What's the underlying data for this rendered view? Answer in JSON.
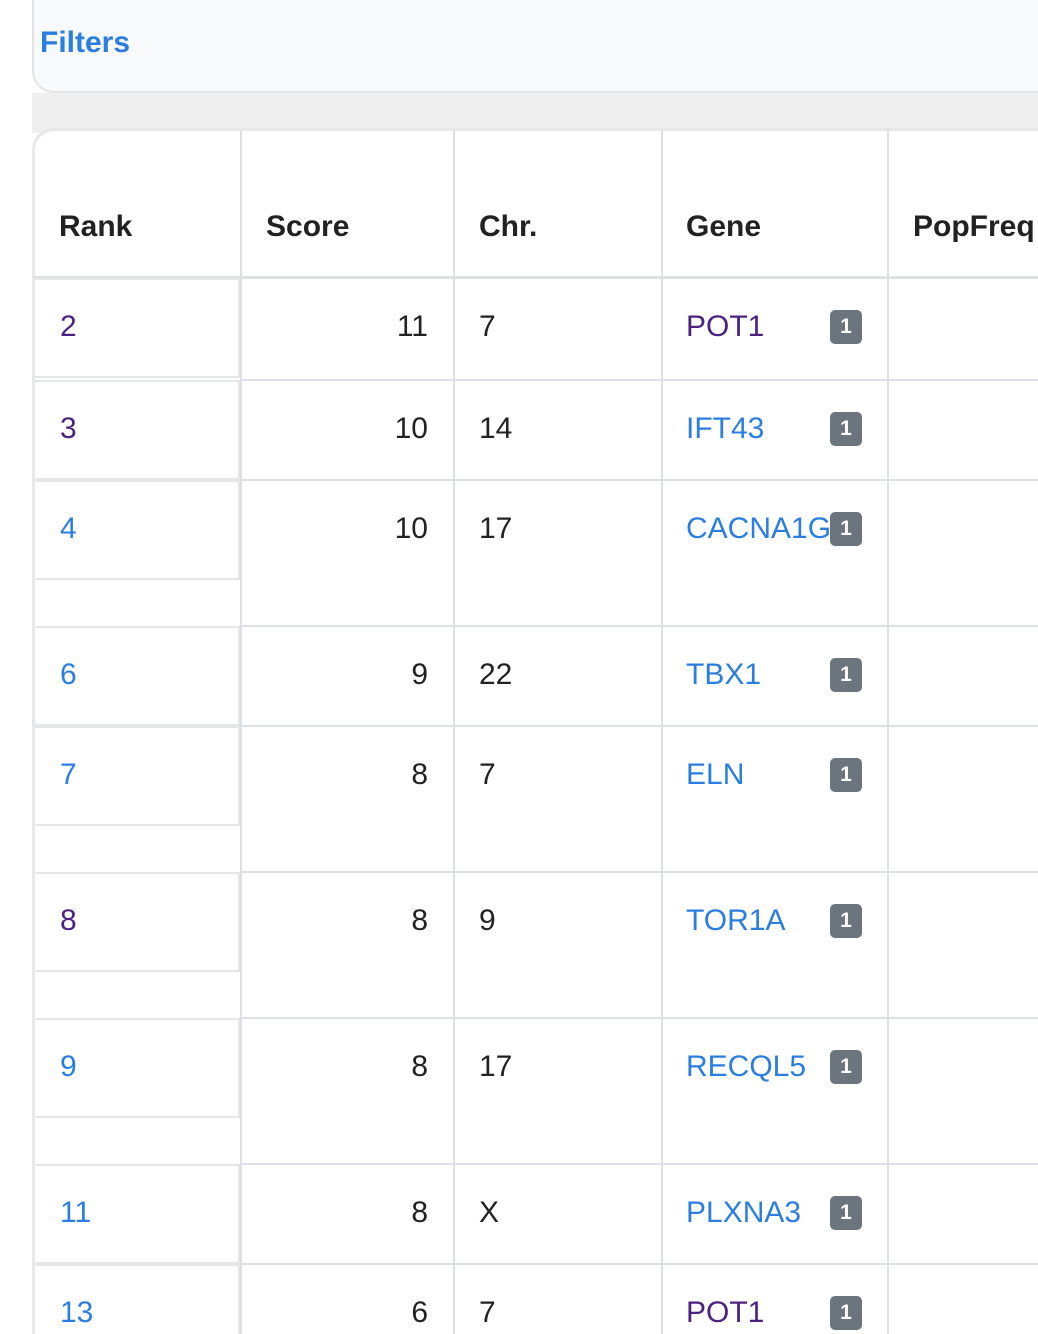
{
  "filters": {
    "title": "Filters"
  },
  "table": {
    "headers": [
      "Rank",
      "Score",
      "Chr.",
      "Gene",
      "PopFreq"
    ],
    "rows": [
      {
        "rank": 2,
        "score": 11,
        "chr": "7",
        "gene": "POT1",
        "badge": "1",
        "rank_color": "#4a2380",
        "gene_color": "#4a2380"
      },
      {
        "rank": 3,
        "score": 10,
        "chr": "14",
        "gene": "IFT43",
        "badge": "1",
        "rank_color": "#4a2380",
        "gene_color": "#2a7de1"
      },
      {
        "rank": 4,
        "score": 10,
        "chr": "17",
        "gene": "CACNA1G",
        "badge": "1",
        "rank_color": "#2a7de1",
        "gene_color": "#2a7de1"
      },
      {
        "rank": 6,
        "score": 9,
        "chr": "22",
        "gene": "TBX1",
        "badge": "1",
        "rank_color": "#2a7de1",
        "gene_color": "#2a7de1"
      },
      {
        "rank": 7,
        "score": 8,
        "chr": "7",
        "gene": "ELN",
        "badge": "1",
        "rank_color": "#2a7de1",
        "gene_color": "#2a7de1"
      },
      {
        "rank": 8,
        "score": 8,
        "chr": "9",
        "gene": "TOR1A",
        "badge": "1",
        "rank_color": "#4a2380",
        "gene_color": "#2a7de1"
      },
      {
        "rank": 9,
        "score": 8,
        "chr": "17",
        "gene": "RECQL5",
        "badge": "1",
        "rank_color": "#2a7de1",
        "gene_color": "#2a7de1"
      },
      {
        "rank": 11,
        "score": 8,
        "chr": "X",
        "gene": "PLXNA3",
        "badge": "1",
        "rank_color": "#2a7de1",
        "gene_color": "#2a7de1"
      },
      {
        "rank": 13,
        "score": 6,
        "chr": "7",
        "gene": "POT1",
        "badge": "1",
        "rank_color": "#2a7de1",
        "gene_color": "#4a2380"
      }
    ]
  }
}
